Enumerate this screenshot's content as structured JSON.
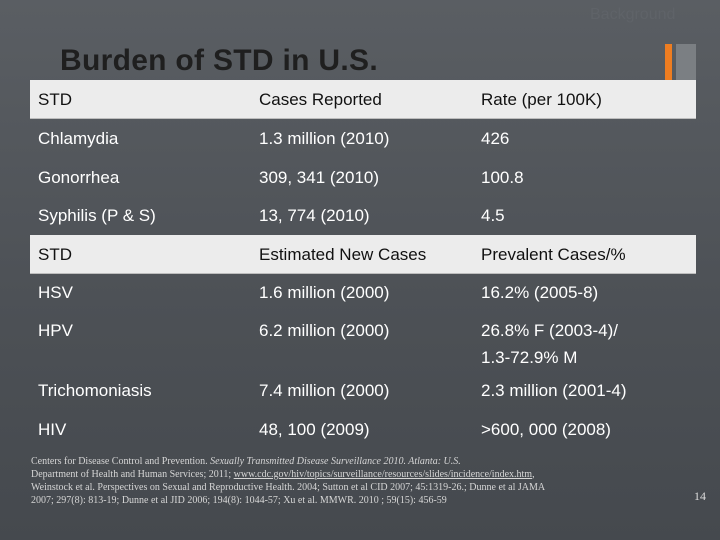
{
  "background_label": "Background",
  "title": "Burden of STD in U.S.",
  "table1": {
    "headers": [
      "STD",
      "Cases Reported",
      "Rate (per 100K)"
    ],
    "rows": [
      [
        "Chlamydia",
        "1.3 million (2010)",
        "426"
      ],
      [
        "Gonorrhea",
        "309, 341 (2010)",
        "100.8"
      ],
      [
        "Syphilis (P & S)",
        "13, 774 (2010)",
        "4.5"
      ]
    ]
  },
  "table2": {
    "headers": [
      "STD",
      "Estimated New Cases",
      "Prevalent Cases/%"
    ],
    "rows": [
      [
        "HSV",
        "1.6 million (2000)",
        "16.2% (2005-8)"
      ],
      [
        "HPV",
        "6.2 million (2000)",
        "26.8% F (2003-4)/"
      ],
      [
        "",
        "",
        "1.3-72.9% M"
      ],
      [
        "Trichomoniasis",
        "7.4 million (2000)",
        "2.3 million (2001-4)"
      ],
      [
        "HIV",
        "48, 100 (2009)",
        ">600, 000 (2008)"
      ]
    ]
  },
  "footer": {
    "line1_prefix": "Centers for Disease Control and Prevention. ",
    "line1_italic": "Sexually Transmitted Disease Surveillance 2010. Atlanta: U.S.",
    "line2_prefix": "Department of Health and Human Services; 2011;  ",
    "link": "www.cdc.gov/hiv/topics/surveillance/resources/slides/incidence/index.htm",
    "line2_suffix": ",",
    "line3": "Weinstock et al.  Perspectives on  Sexual and Reproductive Health. 2004; Sutton et al CID 2007; 45:1319-26.; Dunne et al JAMA",
    "line4": "2007; 297(8): 813-19; Dunne et al JID 2006; 194(8): 1044-57; Xu et al. MMWR. 2010 ; 59(15): 456-59"
  },
  "page_number": "14",
  "colors": {
    "accent_orange": "#ee7d21",
    "header_band": "#ececec",
    "background": "#4f5358"
  }
}
